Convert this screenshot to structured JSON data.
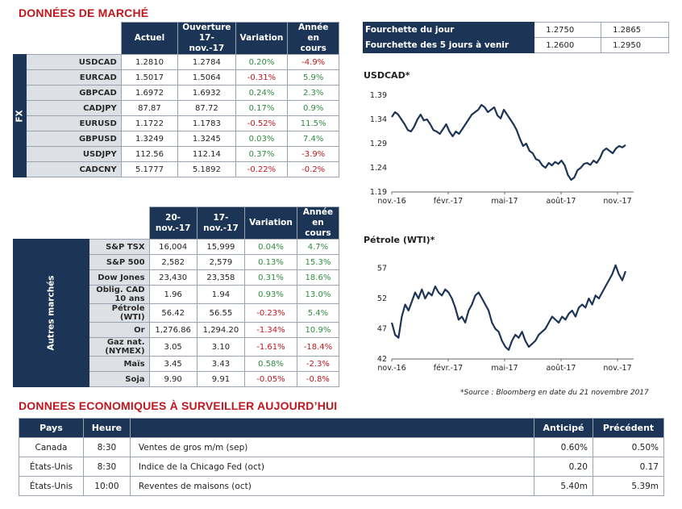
{
  "market_title": "DONNÉES DE MARCHÉ",
  "fx": {
    "side_label": "FX",
    "headers": [
      "Actuel",
      "Ouverture\n17-nov.-17",
      "Variation",
      "Année en\ncours"
    ],
    "rows": [
      {
        "name": "USDCAD",
        "current": "1.2810",
        "open": "1.2784",
        "var": "0.20%",
        "ytd": "-4.9%"
      },
      {
        "name": "EURCAD",
        "current": "1.5017",
        "open": "1.5064",
        "var": "-0.31%",
        "ytd": "5.9%"
      },
      {
        "name": "GBPCAD",
        "current": "1.6972",
        "open": "1.6932",
        "var": "0.24%",
        "ytd": "2.3%"
      },
      {
        "name": "CADJPY",
        "current": "87.87",
        "open": "87.72",
        "var": "0.17%",
        "ytd": "0.9%"
      },
      {
        "name": "EURUSD",
        "current": "1.1722",
        "open": "1.1783",
        "var": "-0.52%",
        "ytd": "11.5%"
      },
      {
        "name": "GBPUSD",
        "current": "1.3249",
        "open": "1.3245",
        "var": "0.03%",
        "ytd": "7.4%"
      },
      {
        "name": "USDJPY",
        "current": "112.56",
        "open": "112.14",
        "var": "0.37%",
        "ytd": "-3.9%"
      },
      {
        "name": "CADCNY",
        "current": "5.1777",
        "open": "5.1892",
        "var": "-0.22%",
        "ytd": "-0.2%"
      }
    ]
  },
  "other": {
    "side_label": "Autres marchés",
    "headers": [
      "20-nov.-17",
      "17-nov.-17",
      "Variation",
      "Année en\ncours"
    ],
    "rows": [
      {
        "name": "S&P TSX",
        "current": "16,004",
        "open": "15,999",
        "var": "0.04%",
        "ytd": "4.7%"
      },
      {
        "name": "S&P 500",
        "current": "2,582",
        "open": "2,579",
        "var": "0.13%",
        "ytd": "15.3%"
      },
      {
        "name": "Dow Jones",
        "current": "23,430",
        "open": "23,358",
        "var": "0.31%",
        "ytd": "18.6%"
      },
      {
        "name": "Oblig. CAD 10 ans",
        "current": "1.96",
        "open": "1.94",
        "var": "0.93%",
        "ytd": "13.0%"
      },
      {
        "name": "Pétrole (WTI)",
        "current": "56.42",
        "open": "56.55",
        "var": "-0.23%",
        "ytd": "5.4%"
      },
      {
        "name": "Or",
        "current": "1,276.86",
        "open": "1,294.20",
        "var": "-1.34%",
        "ytd": "10.9%"
      },
      {
        "name": "Gaz nat. (NYMEX)",
        "current": "3.05",
        "open": "3.10",
        "var": "-1.61%",
        "ytd": "-18.4%"
      },
      {
        "name": "Maïs",
        "current": "3.45",
        "open": "3.43",
        "var": "0.58%",
        "ytd": "-2.3%"
      },
      {
        "name": "Soja",
        "current": "9.90",
        "open": "9.91",
        "var": "-0.05%",
        "ytd": "-0.8%"
      }
    ]
  },
  "ranges": [
    {
      "label": "Fourchette du jour",
      "low": "1.2750",
      "high": "1.2865"
    },
    {
      "label": "Fourchette des 5 jours à venir",
      "low": "1.2600",
      "high": "1.2950"
    }
  ],
  "colors": {
    "navy": "#1c3556",
    "red": "#c0161e",
    "green": "#2e8b3e",
    "label_bg": "#dde0e4"
  },
  "chart_data": [
    {
      "type": "line",
      "title": "USDCAD*",
      "x_ticks": [
        "nov.-16",
        "févr.-17",
        "mai-17",
        "août-17",
        "nov.-17"
      ],
      "y_ticks": [
        "1.39",
        "1.34",
        "1.29",
        "1.24",
        "1.19"
      ],
      "ylim": [
        1.19,
        1.39
      ],
      "grid": false,
      "series": [
        {
          "values": [
            1.345,
            1.355,
            1.35,
            1.34,
            1.33,
            1.318,
            1.315,
            1.325,
            1.34,
            1.35,
            1.338,
            1.34,
            1.33,
            1.318,
            1.315,
            1.31,
            1.32,
            1.33,
            1.315,
            1.305,
            1.315,
            1.31,
            1.32,
            1.33,
            1.34,
            1.35,
            1.355,
            1.36,
            1.37,
            1.365,
            1.355,
            1.36,
            1.365,
            1.348,
            1.342,
            1.36,
            1.35,
            1.34,
            1.33,
            1.318,
            1.3,
            1.285,
            1.29,
            1.275,
            1.27,
            1.258,
            1.255,
            1.245,
            1.24,
            1.25,
            1.245,
            1.252,
            1.248,
            1.255,
            1.245,
            1.225,
            1.215,
            1.22,
            1.235,
            1.24,
            1.248,
            1.25,
            1.246,
            1.255,
            1.25,
            1.26,
            1.275,
            1.28,
            1.275,
            1.27,
            1.28,
            1.285,
            1.282,
            1.287
          ]
        }
      ]
    },
    {
      "type": "line",
      "title": "Pétrole (WTI)*",
      "x_ticks": [
        "nov.-16",
        "févr.-17",
        "mai-17",
        "août-17",
        "nov.-17"
      ],
      "y_ticks": [
        "57",
        "52",
        "47",
        "42"
      ],
      "ylim": [
        42,
        58
      ],
      "grid": false,
      "series": [
        {
          "values": [
            48,
            46,
            45.5,
            49,
            51,
            50,
            51.5,
            53,
            52,
            53.5,
            52,
            53,
            52.5,
            54,
            53,
            52.5,
            53.5,
            53,
            52,
            50.5,
            48.5,
            49,
            48,
            50,
            51,
            52.5,
            53,
            52,
            51,
            50,
            48,
            47,
            46.5,
            45,
            44,
            43.5,
            45,
            46,
            45.5,
            46.5,
            45,
            44,
            44.5,
            45,
            46,
            46.5,
            47,
            48,
            49,
            48.5,
            48,
            49,
            48.5,
            49.5,
            50,
            49,
            50.5,
            51,
            50.5,
            52,
            51,
            52.5,
            52,
            53,
            54,
            55,
            56,
            57.5,
            56,
            55,
            56.5
          ]
        }
      ]
    }
  ],
  "source_note": "*Source : Bloomberg en date du  21 novembre 2017",
  "eco": {
    "title": "DONNEES ECONOMIQUES À SURVEILLER AUJOURD’HUI",
    "headers": {
      "country": "Pays",
      "time": "Heure",
      "indicator": "",
      "expected": "Anticipé",
      "previous": "Précédent"
    },
    "rows": [
      {
        "country": "Canada",
        "time": "8:30",
        "indicator": "Ventes de gros m/m (sep)",
        "expected": "0.60%",
        "previous": "0.50%"
      },
      {
        "country": "États-Unis",
        "time": "8:30",
        "indicator": "Indice de la Chicago Fed (oct)",
        "expected": "0.20",
        "previous": "0.17"
      },
      {
        "country": "États-Unis",
        "time": "10:00",
        "indicator": "Reventes de maisons (oct)",
        "expected": "5.40m",
        "previous": "5.39m"
      }
    ]
  }
}
